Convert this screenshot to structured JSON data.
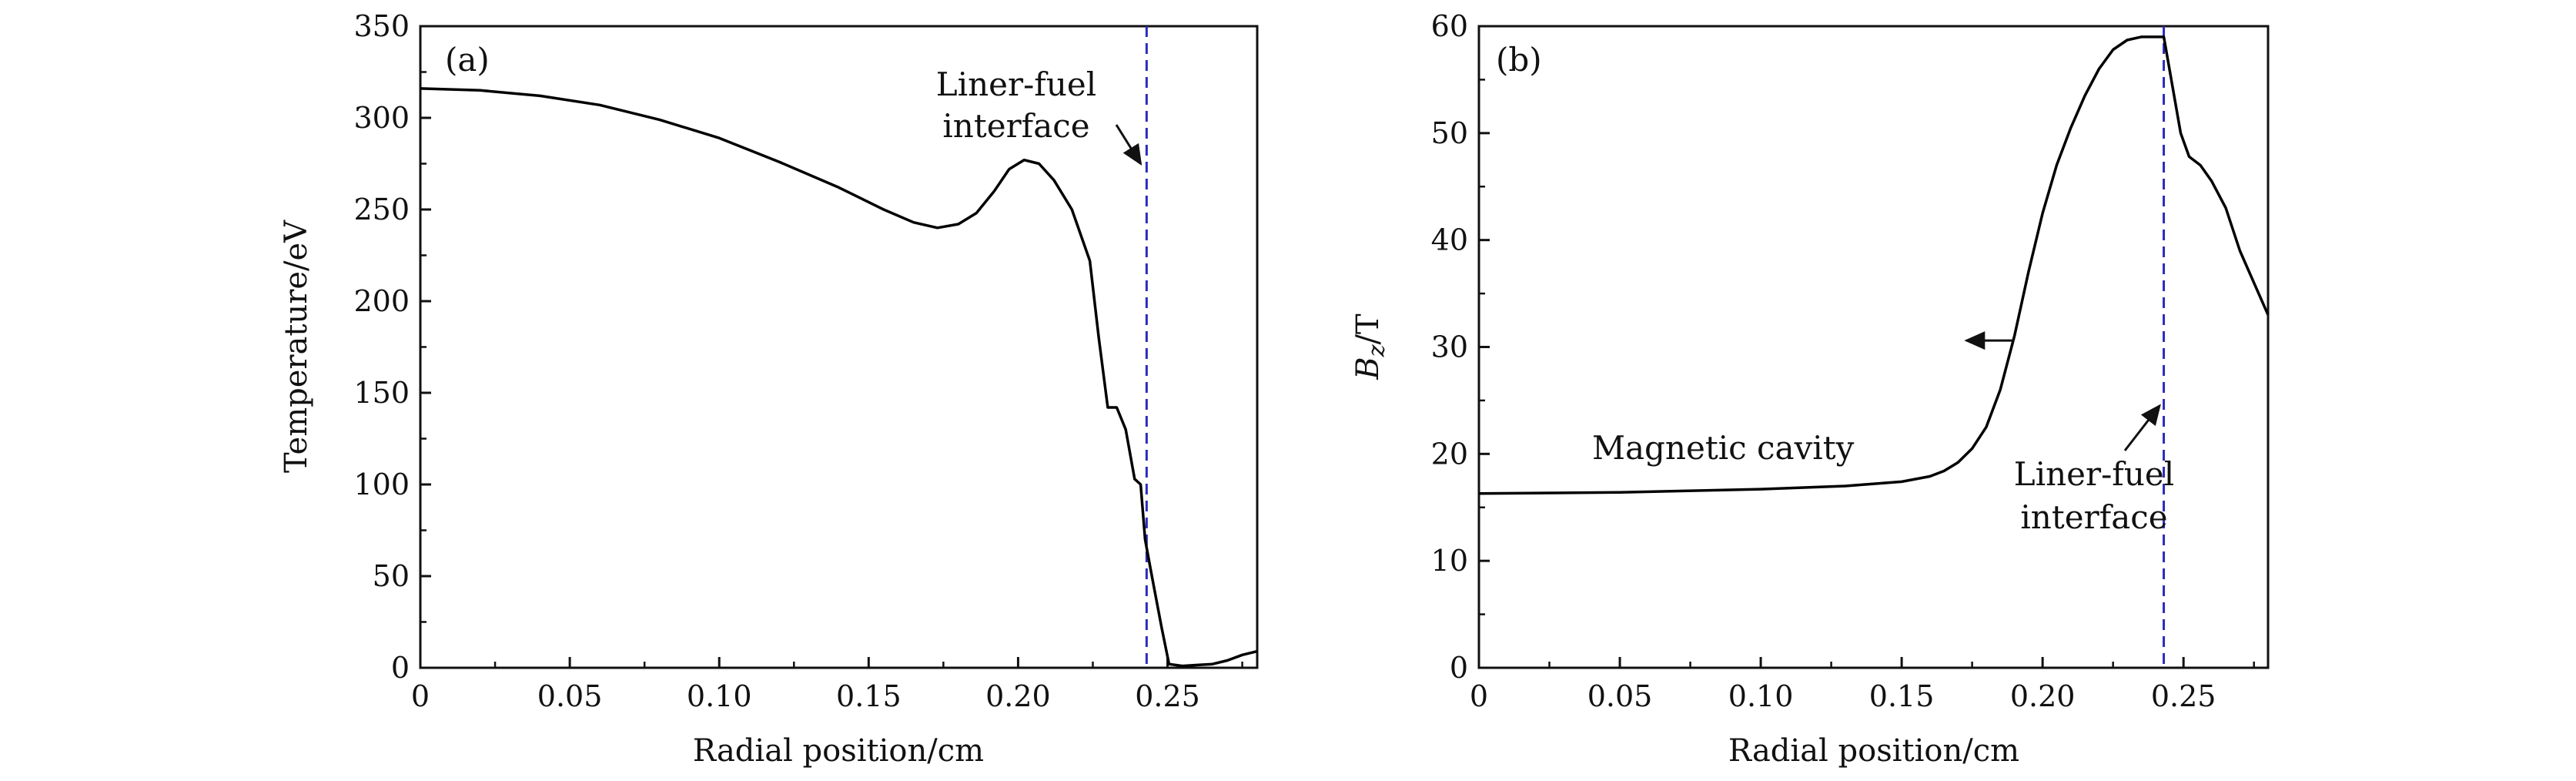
{
  "chart_data": [
    {
      "type": "line",
      "panel_label": "(a)",
      "xlabel": "Radial position/cm",
      "ylabel": "Temperature/eV",
      "xlim": [
        0,
        0.28
      ],
      "ylim": [
        0,
        350
      ],
      "x_ticks": [
        0,
        0.05,
        0.1,
        0.15,
        0.2,
        0.25
      ],
      "x_tick_labels": [
        "0",
        "0.05",
        "0.10",
        "0.15",
        "0.20",
        "0.25"
      ],
      "y_ticks": [
        0,
        50,
        100,
        150,
        200,
        250,
        300,
        350
      ],
      "y_tick_labels": [
        "0",
        "50",
        "100",
        "150",
        "200",
        "250",
        "300",
        "350"
      ],
      "series": [
        {
          "line_color": "#000000",
          "points": [
            [
              0,
              316
            ],
            [
              0.02,
              315
            ],
            [
              0.04,
              312
            ],
            [
              0.06,
              307
            ],
            [
              0.08,
              299
            ],
            [
              0.1,
              289
            ],
            [
              0.12,
              276
            ],
            [
              0.14,
              262
            ],
            [
              0.155,
              250
            ],
            [
              0.165,
              243
            ],
            [
              0.173,
              240
            ],
            [
              0.18,
              242
            ],
            [
              0.186,
              248
            ],
            [
              0.192,
              260
            ],
            [
              0.197,
              272
            ],
            [
              0.202,
              277
            ],
            [
              0.207,
              275
            ],
            [
              0.212,
              266
            ],
            [
              0.218,
              250
            ],
            [
              0.224,
              222
            ],
            [
              0.227,
              180
            ],
            [
              0.23,
              142
            ],
            [
              0.233,
              142
            ],
            [
              0.236,
              130
            ],
            [
              0.239,
              103
            ],
            [
              0.241,
              100
            ],
            [
              0.2425,
              70
            ],
            [
              0.245,
              48
            ],
            [
              0.248,
              22
            ],
            [
              0.2505,
              2
            ],
            [
              0.255,
              1
            ],
            [
              0.26,
              1.5
            ],
            [
              0.265,
              2
            ],
            [
              0.27,
              4
            ],
            [
              0.275,
              7
            ],
            [
              0.28,
              9
            ]
          ]
        }
      ],
      "vline": {
        "x": 0.243,
        "color": "#2b2bbd"
      },
      "annotation": {
        "lines": [
          "Liner-fuel",
          "interface"
        ],
        "arrow_tip": [
          0.241,
          275
        ]
      }
    },
    {
      "type": "line",
      "panel_label": "(b)",
      "xlabel": "Radial position/cm",
      "ylabel_main": "B",
      "ylabel_sub": "z",
      "ylabel_rest": "/T",
      "xlim": [
        0,
        0.28
      ],
      "ylim": [
        0,
        60
      ],
      "x_ticks": [
        0,
        0.05,
        0.1,
        0.15,
        0.2,
        0.25
      ],
      "x_tick_labels": [
        "0",
        "0.05",
        "0.10",
        "0.15",
        "0.20",
        "0.25"
      ],
      "y_ticks": [
        0,
        10,
        20,
        30,
        40,
        50,
        60
      ],
      "y_tick_labels": [
        "0",
        "10",
        "20",
        "30",
        "40",
        "50",
        "60"
      ],
      "series": [
        {
          "line_color": "#000000",
          "points": [
            [
              0,
              16.3
            ],
            [
              0.05,
              16.4
            ],
            [
              0.1,
              16.7
            ],
            [
              0.13,
              17.0
            ],
            [
              0.15,
              17.4
            ],
            [
              0.16,
              17.9
            ],
            [
              0.165,
              18.4
            ],
            [
              0.17,
              19.2
            ],
            [
              0.175,
              20.5
            ],
            [
              0.18,
              22.5
            ],
            [
              0.185,
              26
            ],
            [
              0.19,
              31
            ],
            [
              0.195,
              37
            ],
            [
              0.2,
              42.5
            ],
            [
              0.205,
              47
            ],
            [
              0.21,
              50.5
            ],
            [
              0.215,
              53.5
            ],
            [
              0.22,
              56
            ],
            [
              0.225,
              57.8
            ],
            [
              0.23,
              58.7
            ],
            [
              0.235,
              59
            ],
            [
              0.243,
              59
            ],
            [
              0.245,
              56
            ],
            [
              0.249,
              50
            ],
            [
              0.252,
              47.8
            ],
            [
              0.256,
              47
            ],
            [
              0.26,
              45.5
            ],
            [
              0.265,
              43
            ],
            [
              0.27,
              39
            ],
            [
              0.275,
              36
            ],
            [
              0.28,
              33
            ]
          ]
        }
      ],
      "vline": {
        "x": 0.243,
        "color": "#2b2bbd"
      },
      "cavity_label": "Magnetic cavity",
      "annotation": {
        "lines": [
          "Liner-fuel",
          "interface"
        ],
        "arrow_tip": [
          0.2415,
          24.5
        ]
      },
      "axis_arrow": {
        "from": [
          0.19,
          30.6
        ],
        "to": [
          0.173,
          30.6
        ]
      }
    }
  ]
}
